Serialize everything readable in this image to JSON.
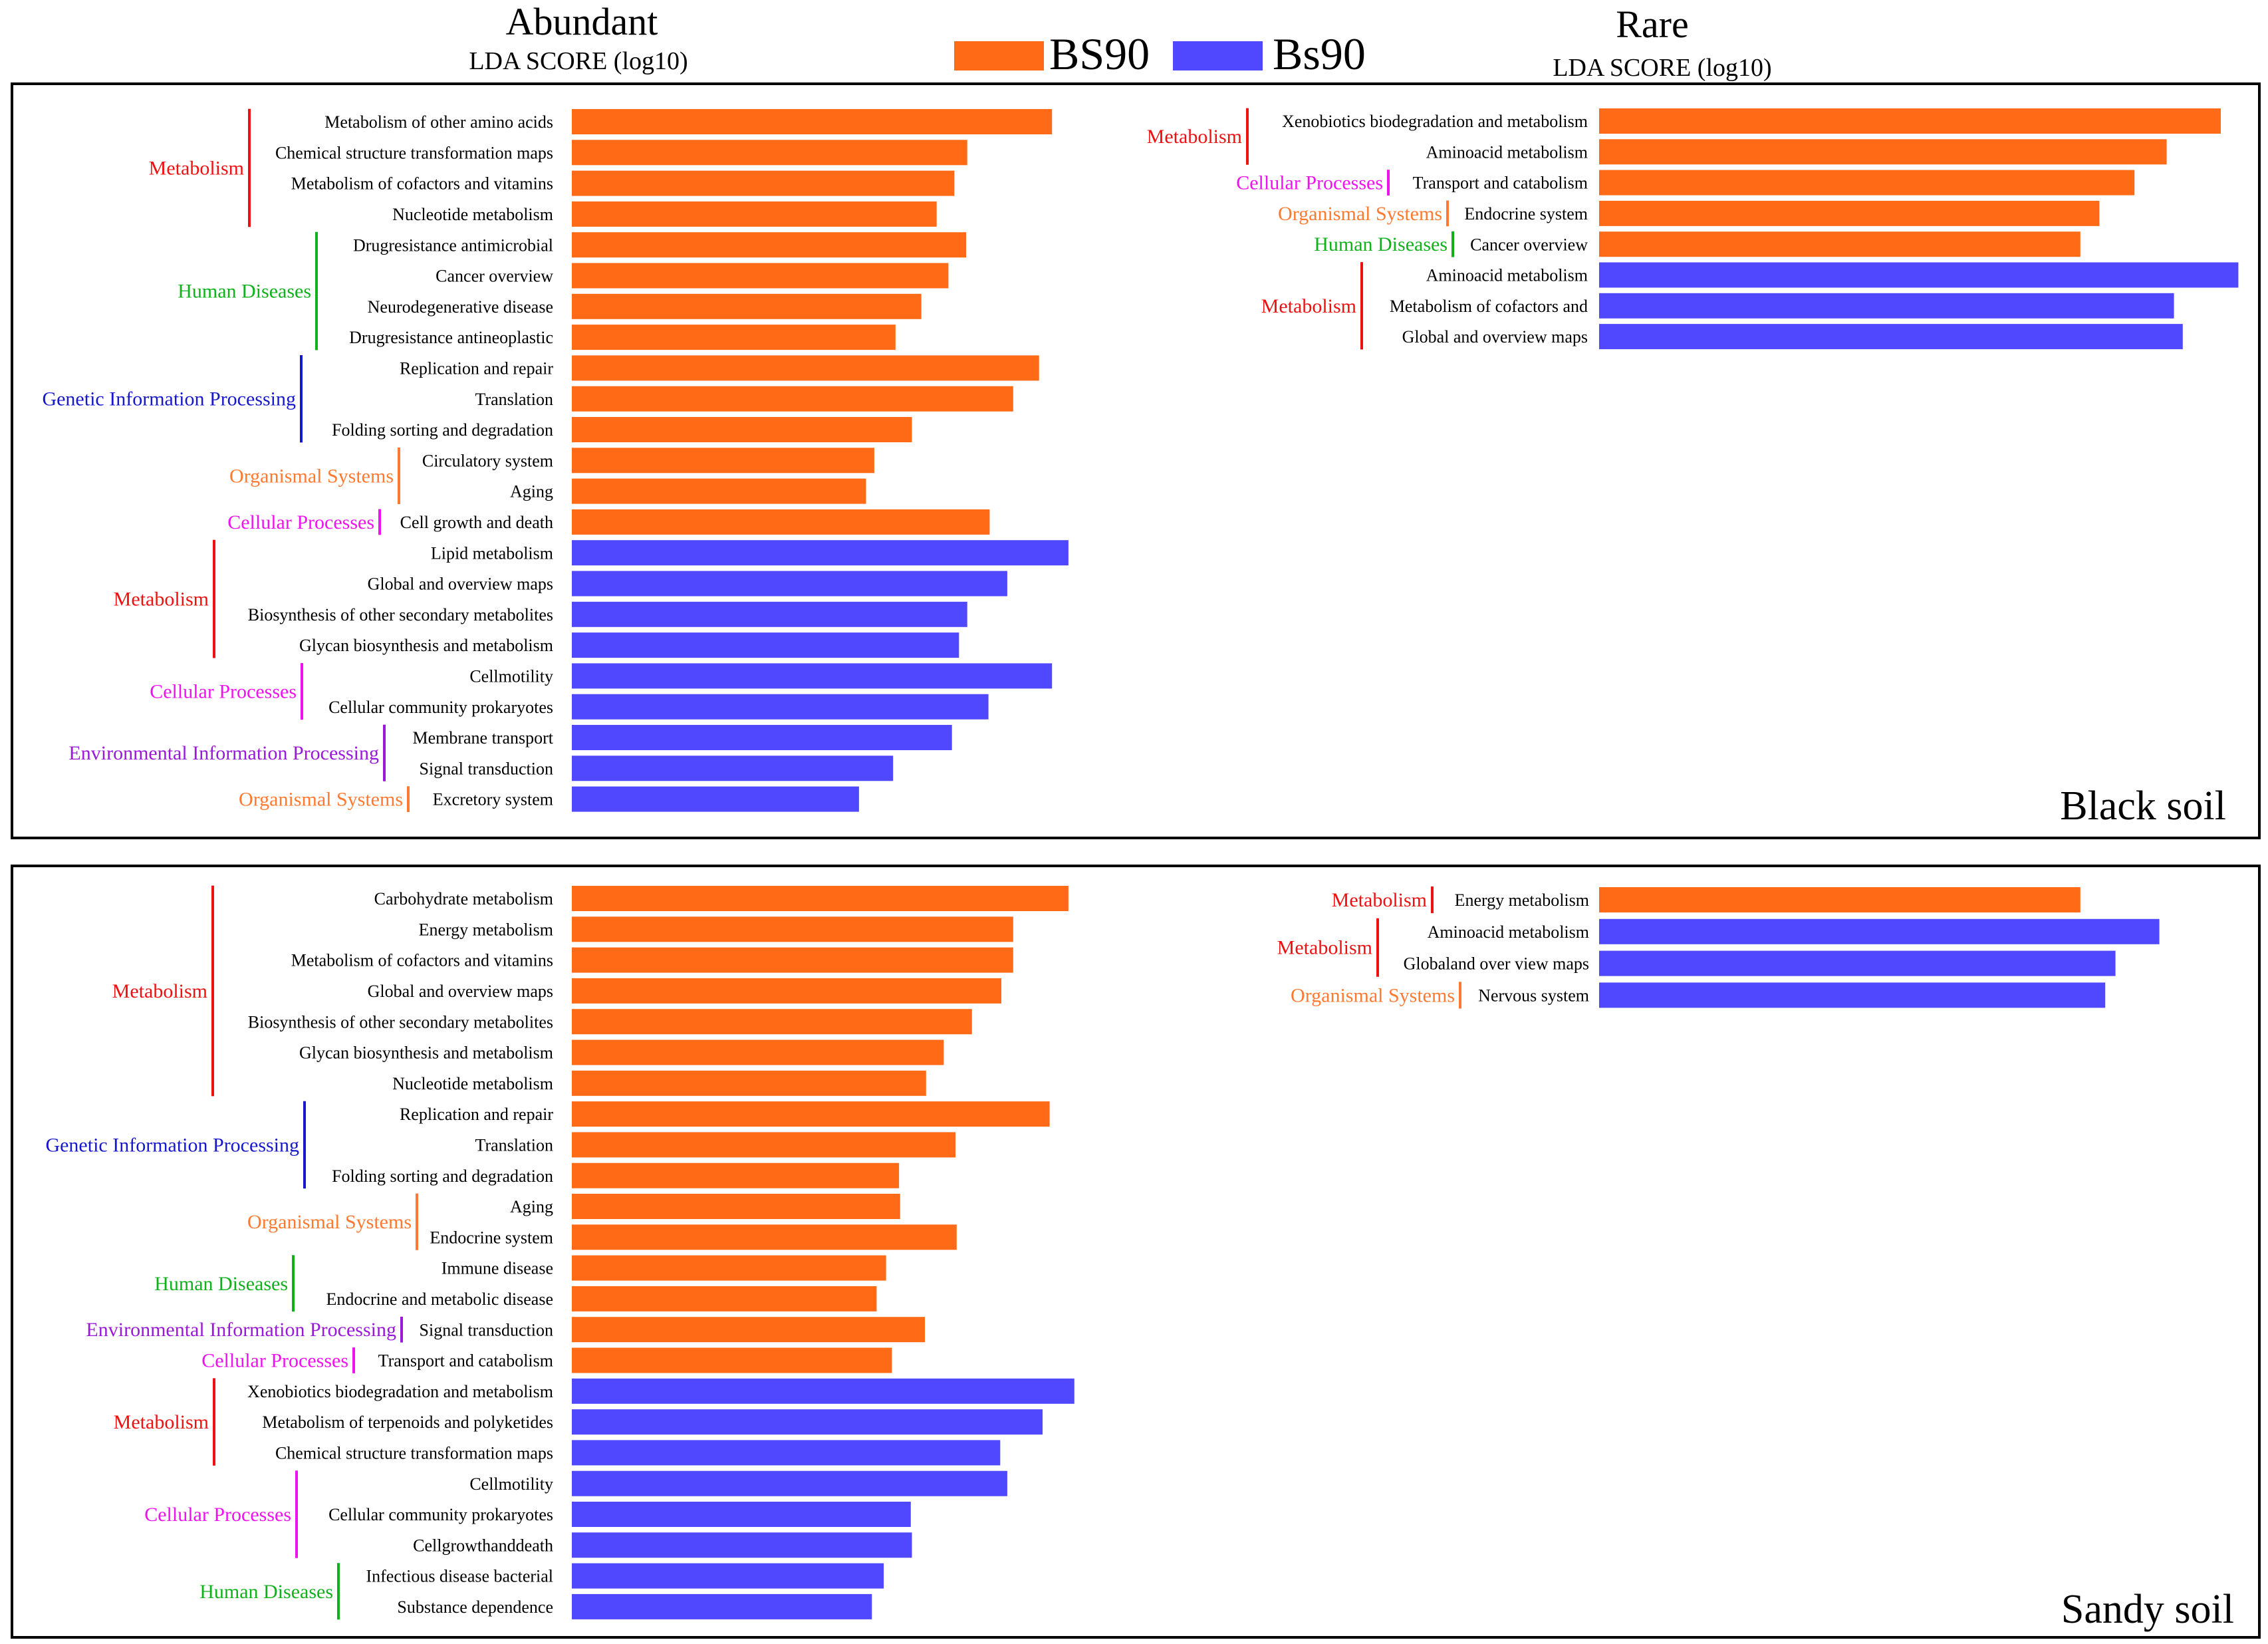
{
  "colors": {
    "BS90": "#ff6a17",
    "Bs90": "#5048ff",
    "Metabolism": "#ee1111",
    "Human Diseases": "#10b21c",
    "Genetic Information Processing": "#1717cc",
    "Organismal Systems": "#ff7a30",
    "Cellular Processes": "#ee12ee",
    "Environmental Information Processing": "#9a18d8"
  },
  "header": {
    "abundant_title": "Abundant",
    "abundant_subtitle": "LDA SCORE (log10)",
    "rare_title": "Rare",
    "rare_subtitle": "LDA SCORE (log10)"
  },
  "legend": [
    {
      "label": "BS90",
      "color": "#ff6a17"
    },
    {
      "label": "Bs90",
      "color": "#5048ff"
    }
  ],
  "chart_data": [
    {
      "type": "bar",
      "orientation": "horizontal",
      "panel": "Black soil",
      "column": "Abundant",
      "title": "Abundant",
      "xlabel": "LDA SCORE (log10)",
      "xlim": [
        0,
        4.5
      ],
      "bars": [
        {
          "label": "Metabolism of other amino acids",
          "group": "BS90",
          "category": "Metabolism",
          "value": 4.08
        },
        {
          "label": "Chemical structure transformation maps",
          "group": "BS90",
          "category": "Metabolism",
          "value": 3.36
        },
        {
          "label": "Metabolism of cofactors and vitamins",
          "group": "BS90",
          "category": "Metabolism",
          "value": 3.25
        },
        {
          "label": "Nucleotide metabolism",
          "group": "BS90",
          "category": "Metabolism",
          "value": 3.1
        },
        {
          "label": "Drugresistance antimicrobial",
          "group": "BS90",
          "category": "Human Diseases",
          "value": 3.35
        },
        {
          "label": "Cancer overview",
          "group": "BS90",
          "category": "Human Diseases",
          "value": 3.2
        },
        {
          "label": "Neurodegenerative disease",
          "group": "BS90",
          "category": "Human Diseases",
          "value": 2.97
        },
        {
          "label": "Drugresistance antineoplastic",
          "group": "BS90",
          "category": "Human Diseases",
          "value": 2.75
        },
        {
          "label": "Replication and repair",
          "group": "BS90",
          "category": "Genetic Information Processing",
          "value": 3.97
        },
        {
          "label": "Translation",
          "group": "BS90",
          "category": "Genetic Information Processing",
          "value": 3.75
        },
        {
          "label": "Folding sorting and degradation",
          "group": "BS90",
          "category": "Genetic Information Processing",
          "value": 2.89
        },
        {
          "label": "Circulatory system",
          "group": "BS90",
          "category": "Organismal Systems",
          "value": 2.57
        },
        {
          "label": "Aging",
          "group": "BS90",
          "category": "Organismal Systems",
          "value": 2.5
        },
        {
          "label": "Cell growth and death",
          "group": "BS90",
          "category": "Cellular Processes",
          "value": 3.55
        },
        {
          "label": "Lipid metabolism",
          "group": "Bs90",
          "category": "Metabolism",
          "value": 4.22
        },
        {
          "label": "Global and overview maps",
          "group": "Bs90",
          "category": "Metabolism",
          "value": 3.7
        },
        {
          "label": "Biosynthesis of other secondary metabolites",
          "group": "Bs90",
          "category": "Metabolism",
          "value": 3.36
        },
        {
          "label": "Glycan biosynthesis and metabolism",
          "group": "Bs90",
          "category": "Metabolism",
          "value": 3.29
        },
        {
          "label": "Cellmotility",
          "group": "Bs90",
          "category": "Cellular Processes",
          "value": 4.08
        },
        {
          "label": "Cellular community prokaryotes",
          "group": "Bs90",
          "category": "Cellular Processes",
          "value": 3.54
        },
        {
          "label": "Membrane transport",
          "group": "Bs90",
          "category": "Environmental Information Processing",
          "value": 3.23
        },
        {
          "label": "Signal transduction",
          "group": "Bs90",
          "category": "Environmental Information Processing",
          "value": 2.73
        },
        {
          "label": "Excretory system",
          "group": "Bs90",
          "category": "Organismal Systems",
          "value": 2.44
        }
      ],
      "brackets": [
        {
          "label": "Metabolism",
          "category": "Metabolism"
        },
        {
          "label": "Human Diseases",
          "category": "Human Diseases"
        },
        {
          "label": "Genetic Information Processing",
          "category": "Genetic Information Processing"
        },
        {
          "label": "Organismal Systems",
          "category": "Organismal Systems"
        },
        {
          "label": "Cellular Processes",
          "category": "Cellular Processes"
        },
        {
          "label": "Metabolism",
          "category": "Metabolism"
        },
        {
          "label": "Cellular Processes",
          "category": "Cellular Processes"
        },
        {
          "label": "Environmental Information Processing",
          "category": "Environmental Information Processing"
        },
        {
          "label": "Organismal Systems",
          "category": "Organismal Systems"
        }
      ]
    },
    {
      "type": "bar",
      "orientation": "horizontal",
      "panel": "Black soil",
      "column": "Rare",
      "title": "Rare",
      "xlabel": "LDA SCORE (log10)",
      "xlim": [
        0,
        4.5
      ],
      "bars": [
        {
          "label": "Xenobiotics biodegradation and metabolism",
          "group": "BS90",
          "category": "Metabolism",
          "value": 4.25
        },
        {
          "label": "Aminoacid metabolism",
          "group": "BS90",
          "category": "Metabolism",
          "value": 3.88
        },
        {
          "label": "Transport and catabolism",
          "group": "BS90",
          "category": "Cellular Processes",
          "value": 3.66
        },
        {
          "label": "Endocrine system",
          "group": "BS90",
          "category": "Organismal Systems",
          "value": 3.42
        },
        {
          "label": "Cancer overview",
          "group": "BS90",
          "category": "Human Diseases",
          "value": 3.29
        },
        {
          "label": "Aminoacid metabolism",
          "group": "Bs90",
          "category": "Metabolism",
          "value": 4.37
        },
        {
          "label": "Metabolism of cofactors and",
          "group": "Bs90",
          "category": "Metabolism",
          "value": 3.93
        },
        {
          "label": "Global and overview maps",
          "group": "Bs90",
          "category": "Metabolism",
          "value": 3.99
        }
      ],
      "brackets": [
        {
          "label": "Metabolism",
          "category": "Metabolism"
        },
        {
          "label": "Cellular Processes",
          "category": "Cellular Processes"
        },
        {
          "label": "Organismal Systems",
          "category": "Organismal Systems"
        },
        {
          "label": "Human Diseases",
          "category": "Human Diseases"
        },
        {
          "label": "Metabolism",
          "category": "Metabolism"
        }
      ],
      "panel_label": "Black soil"
    },
    {
      "type": "bar",
      "orientation": "horizontal",
      "panel": "Sandy soil",
      "column": "Abundant",
      "title": "Abundant",
      "xlabel": "LDA SCORE (log10)",
      "xlim": [
        0,
        4.5
      ],
      "bars": [
        {
          "label": "Carbohydrate metabolism",
          "group": "BS90",
          "category": "Metabolism",
          "value": 4.22
        },
        {
          "label": "Energy metabolism",
          "group": "BS90",
          "category": "Metabolism",
          "value": 3.75
        },
        {
          "label": "Metabolism of cofactors and vitamins",
          "group": "BS90",
          "category": "Metabolism",
          "value": 3.75
        },
        {
          "label": "Global and overview maps",
          "group": "BS90",
          "category": "Metabolism",
          "value": 3.65
        },
        {
          "label": "Biosynthesis of other secondary metabolites",
          "group": "BS90",
          "category": "Metabolism",
          "value": 3.4
        },
        {
          "label": "Glycan biosynthesis and metabolism",
          "group": "BS90",
          "category": "Metabolism",
          "value": 3.16
        },
        {
          "label": "Nucleotide metabolism",
          "group": "BS90",
          "category": "Metabolism",
          "value": 3.01
        },
        {
          "label": "Replication and repair",
          "group": "BS90",
          "category": "Genetic Information Processing",
          "value": 4.06
        },
        {
          "label": "Translation",
          "group": "BS90",
          "category": "Genetic Information Processing",
          "value": 3.26
        },
        {
          "label": "Folding sorting and  degradation",
          "group": "BS90",
          "category": "Genetic Information Processing",
          "value": 2.78
        },
        {
          "label": "Aging",
          "group": "BS90",
          "category": "Organismal Systems",
          "value": 2.79
        },
        {
          "label": "Endocrine system",
          "group": "BS90",
          "category": "Organismal Systems",
          "value": 3.27
        },
        {
          "label": "Immune disease",
          "group": "BS90",
          "category": "Human Diseases",
          "value": 2.67
        },
        {
          "label": "Endocrine and metabolic disease",
          "group": "BS90",
          "category": "Human Diseases",
          "value": 2.59
        },
        {
          "label": "Signal transduction",
          "group": "BS90",
          "category": "Environmental Information Processing",
          "value": 3.0
        },
        {
          "label": "Transport and catabolism",
          "group": "BS90",
          "category": "Cellular Processes",
          "value": 2.72
        },
        {
          "label": "Xenobiotics biodegradation and metabolism",
          "group": "Bs90",
          "category": "Metabolism",
          "value": 4.27
        },
        {
          "label": "Metabolism of terpenoids and polyketides",
          "group": "Bs90",
          "category": "Metabolism",
          "value": 4.0
        },
        {
          "label": "Chemical structure transformation maps",
          "group": "Bs90",
          "category": "Metabolism",
          "value": 3.64
        },
        {
          "label": "Cellmotility",
          "group": "Bs90",
          "category": "Cellular Processes",
          "value": 3.7
        },
        {
          "label": "Cellular community prokaryotes",
          "group": "Bs90",
          "category": "Cellular Processes",
          "value": 2.88
        },
        {
          "label": "Cellgrowthanddeath",
          "group": "Bs90",
          "category": "Cellular Processes",
          "value": 2.89
        },
        {
          "label": "Infectious disease bacterial",
          "group": "Bs90",
          "category": "Human Diseases",
          "value": 2.65
        },
        {
          "label": "Substance dependence",
          "group": "Bs90",
          "category": "Human Diseases",
          "value": 2.55
        }
      ],
      "brackets": [
        {
          "label": "Metabolism",
          "category": "Metabolism"
        },
        {
          "label": "Genetic Information Processing",
          "category": "Genetic Information Processing"
        },
        {
          "label": "Organismal Systems",
          "category": "Organismal Systems"
        },
        {
          "label": "Human Diseases",
          "category": "Human Diseases"
        },
        {
          "label": "Environmental Information Processing",
          "category": "Environmental Information Processing"
        },
        {
          "label": "Cellular Processes",
          "category": "Cellular Processes"
        },
        {
          "label": "Metabolism",
          "category": "Metabolism"
        },
        {
          "label": "Cellular Processes",
          "category": "Cellular Processes"
        },
        {
          "label": "Human Diseases",
          "category": "Human Diseases"
        }
      ]
    },
    {
      "type": "bar",
      "orientation": "horizontal",
      "panel": "Sandy soil",
      "column": "Rare",
      "title": "Rare",
      "xlabel": "LDA SCORE (log10)",
      "xlim": [
        0,
        4.5
      ],
      "bars": [
        {
          "label": "Energy metabolism",
          "group": "BS90",
          "category": "Metabolism",
          "value": 3.29
        },
        {
          "label": "Aminoacid metabolism",
          "group": "Bs90",
          "category": "Metabolism",
          "value": 3.83
        },
        {
          "label": "Globaland over view maps",
          "group": "Bs90",
          "category": "Metabolism",
          "value": 3.53
        },
        {
          "label": "Nervous system",
          "group": "Bs90",
          "category": "Organismal Systems",
          "value": 3.46
        }
      ],
      "brackets": [
        {
          "label": "Metabolism",
          "category": "Metabolism"
        },
        {
          "label": "Metabolism",
          "category": "Metabolism"
        },
        {
          "label": "Organismal Systems",
          "category": "Organismal Systems"
        }
      ],
      "panel_label": "Sandy soil"
    }
  ]
}
